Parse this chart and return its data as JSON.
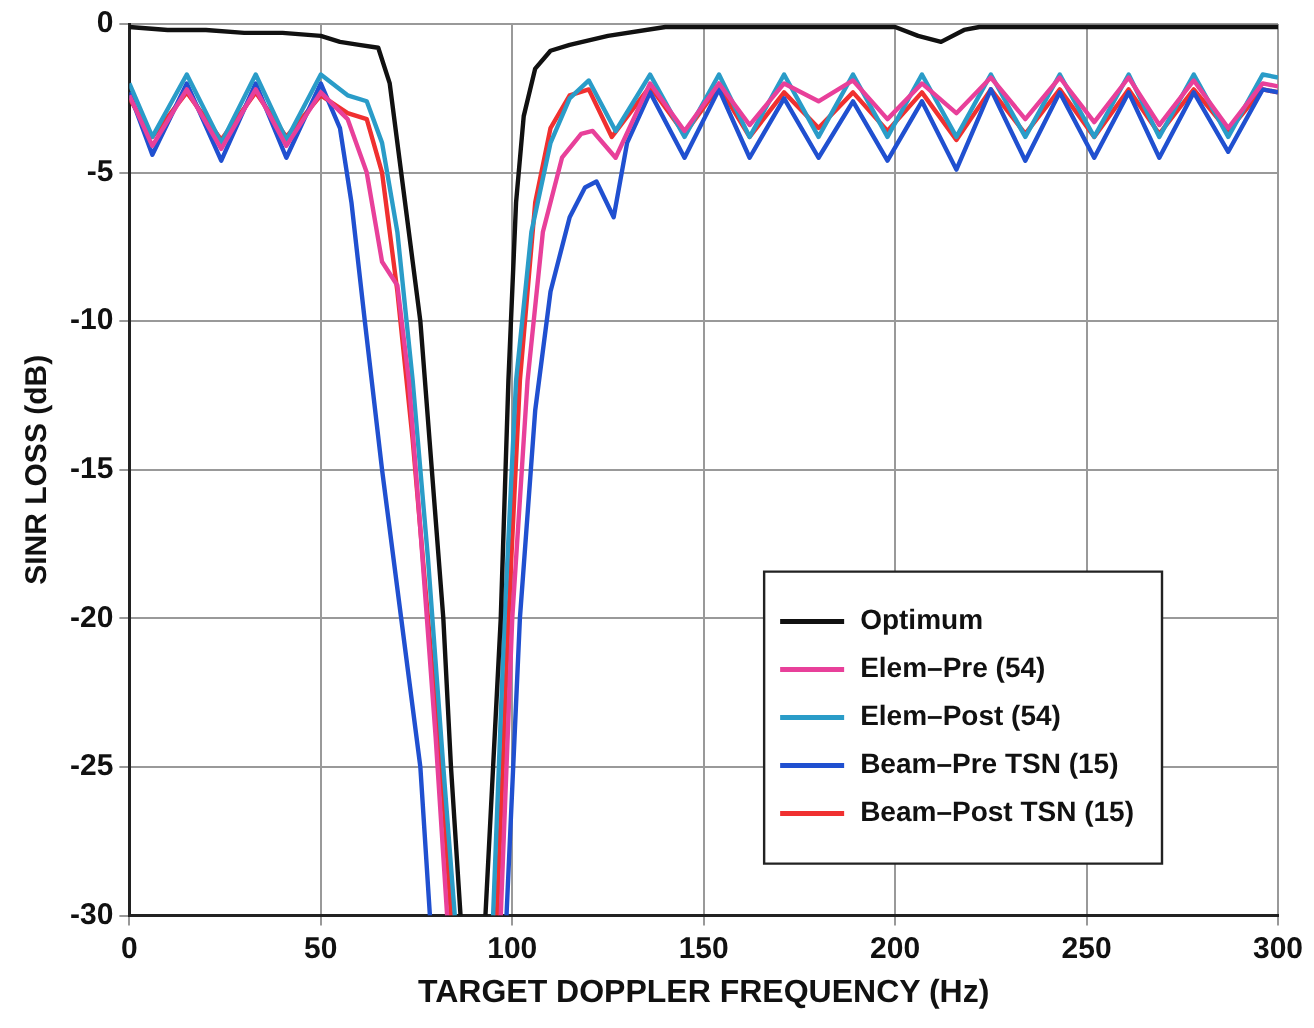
{
  "chart_data": {
    "type": "line",
    "xlabel": "TARGET DOPPLER FREQUENCY (Hz)",
    "ylabel": "SINR LOSS (dB)",
    "xlim": [
      0,
      300
    ],
    "xticks": [
      0,
      50,
      100,
      150,
      200,
      250,
      300
    ],
    "ylim": [
      -30,
      0
    ],
    "yticks": [
      -30,
      -25,
      -20,
      -15,
      -10,
      -5,
      0
    ],
    "grid": true,
    "legend": "bottom right",
    "line_style": "solid",
    "marker": "none",
    "series": [
      {
        "name": "Optimum",
        "color": "#111111",
        "x": [
          0,
          10,
          20,
          30,
          40,
          50,
          55,
          60,
          65,
          68,
          71,
          74,
          76,
          79,
          82,
          84,
          86.5,
          90,
          93,
          95,
          97,
          99,
          101,
          103,
          106,
          110,
          115,
          125,
          140,
          200,
          206,
          212,
          218,
          222,
          300
        ],
        "values": [
          -0.1,
          -0.2,
          -0.2,
          -0.3,
          -0.3,
          -0.4,
          -0.6,
          -0.7,
          -0.8,
          -2,
          -5,
          -8,
          -10,
          -15,
          -20,
          -25,
          -30,
          null,
          -30,
          -25,
          -20,
          -12,
          -6,
          -3.1,
          -1.5,
          -0.9,
          -0.7,
          -0.4,
          -0.1,
          -0.1,
          -0.4,
          -0.6,
          -0.2,
          -0.1,
          -0.1
        ]
      },
      {
        "name": "Elem–Pre (54)",
        "color": "#e8409a",
        "x": [
          0,
          6,
          15,
          24,
          33,
          41,
          50,
          57,
          62,
          66,
          70,
          73,
          76,
          80,
          83,
          90,
          97,
          100,
          104,
          108,
          113,
          118,
          121,
          127,
          136,
          145,
          154,
          162,
          171,
          180,
          189,
          198,
          207,
          216,
          225,
          234,
          243,
          252,
          261,
          269,
          278,
          287,
          296,
          300
        ],
        "values": [
          -2.4,
          -4.1,
          -2.2,
          -4.2,
          -2.2,
          -4.1,
          -2.3,
          -3.2,
          -5,
          -8,
          -8.8,
          -12,
          -17,
          -24,
          -30,
          null,
          -30,
          -20,
          -12,
          -7,
          -4.5,
          -3.7,
          -3.6,
          -4.5,
          -2.0,
          -3.6,
          -2.0,
          -3.4,
          -2.0,
          -2.6,
          -1.9,
          -3.2,
          -2.0,
          -3.0,
          -1.8,
          -3.2,
          -1.8,
          -3.3,
          -1.8,
          -3.4,
          -1.9,
          -3.5,
          -2.0,
          -2.1
        ]
      },
      {
        "name": "Elem–Post (54)",
        "color": "#2a9cc8",
        "x": [
          0,
          6,
          15,
          24,
          33,
          41,
          50,
          57,
          62,
          66,
          70,
          74,
          78,
          82,
          85,
          90,
          95,
          98,
          101,
          105,
          110,
          115,
          120,
          127,
          136,
          145,
          154,
          162,
          171,
          180,
          189,
          198,
          207,
          216,
          225,
          234,
          243,
          252,
          261,
          269,
          278,
          287,
          296,
          300
        ],
        "values": [
          -2.0,
          -3.8,
          -1.7,
          -4.0,
          -1.7,
          -3.9,
          -1.7,
          -2.4,
          -2.6,
          -4,
          -7,
          -12,
          -18,
          -25,
          -30,
          null,
          -30,
          -20,
          -12,
          -7,
          -4,
          -2.5,
          -1.9,
          -3.6,
          -1.7,
          -3.8,
          -1.7,
          -3.8,
          -1.7,
          -3.8,
          -1.7,
          -3.8,
          -1.7,
          -3.8,
          -1.7,
          -3.8,
          -1.7,
          -3.8,
          -1.7,
          -3.8,
          -1.7,
          -3.8,
          -1.7,
          -1.8
        ]
      },
      {
        "name": "Beam–Pre TSN (15)",
        "color": "#2050d0",
        "x": [
          0,
          6,
          15,
          24,
          33,
          41,
          50,
          55,
          58,
          61.5,
          66,
          71,
          76,
          78.5,
          90,
          98.5,
          102,
          106,
          110,
          115,
          119,
          122,
          126.5,
          130,
          136,
          145,
          154,
          162,
          171,
          180,
          189,
          198,
          207,
          216,
          225,
          234,
          243,
          252,
          261,
          269,
          278,
          287,
          296,
          300
        ],
        "values": [
          -2.3,
          -4.4,
          -2.0,
          -4.6,
          -2.0,
          -4.5,
          -2.0,
          -3.5,
          -6,
          -10,
          -15,
          -20,
          -25,
          -30,
          null,
          -30,
          -20,
          -13,
          -9,
          -6.5,
          -5.5,
          -5.3,
          -6.5,
          -4,
          -2.3,
          -4.5,
          -2.2,
          -4.5,
          -2.5,
          -4.5,
          -2.6,
          -4.6,
          -2.6,
          -4.9,
          -2.2,
          -4.6,
          -2.3,
          -4.5,
          -2.3,
          -4.5,
          -2.3,
          -4.3,
          -2.2,
          -2.3
        ]
      },
      {
        "name": "Beam–Post TSN (15)",
        "color": "#f03030",
        "x": [
          0,
          6,
          15,
          24,
          33,
          41,
          50,
          57,
          62,
          66,
          70,
          74,
          78,
          82,
          84,
          90,
          96,
          99,
          102,
          106,
          110,
          115,
          120,
          126,
          136,
          145,
          154,
          162,
          171,
          180,
          189,
          198,
          207,
          216,
          225,
          234,
          243,
          252,
          261,
          269,
          278,
          287,
          296,
          300
        ],
        "values": [
          -2.5,
          -3.8,
          -2.3,
          -3.9,
          -2.3,
          -3.8,
          -2.4,
          -3.0,
          -3.2,
          -5,
          -9,
          -14,
          -20,
          -26,
          -30,
          null,
          -30,
          -20,
          -12,
          -6,
          -3.5,
          -2.4,
          -2.2,
          -3.8,
          -2.1,
          -3.7,
          -2.1,
          -3.8,
          -2.3,
          -3.5,
          -2.3,
          -3.6,
          -2.3,
          -3.9,
          -2.2,
          -3.7,
          -2.2,
          -3.8,
          -2.2,
          -3.7,
          -2.2,
          -3.6,
          -2.2,
          -2.3
        ]
      }
    ]
  }
}
